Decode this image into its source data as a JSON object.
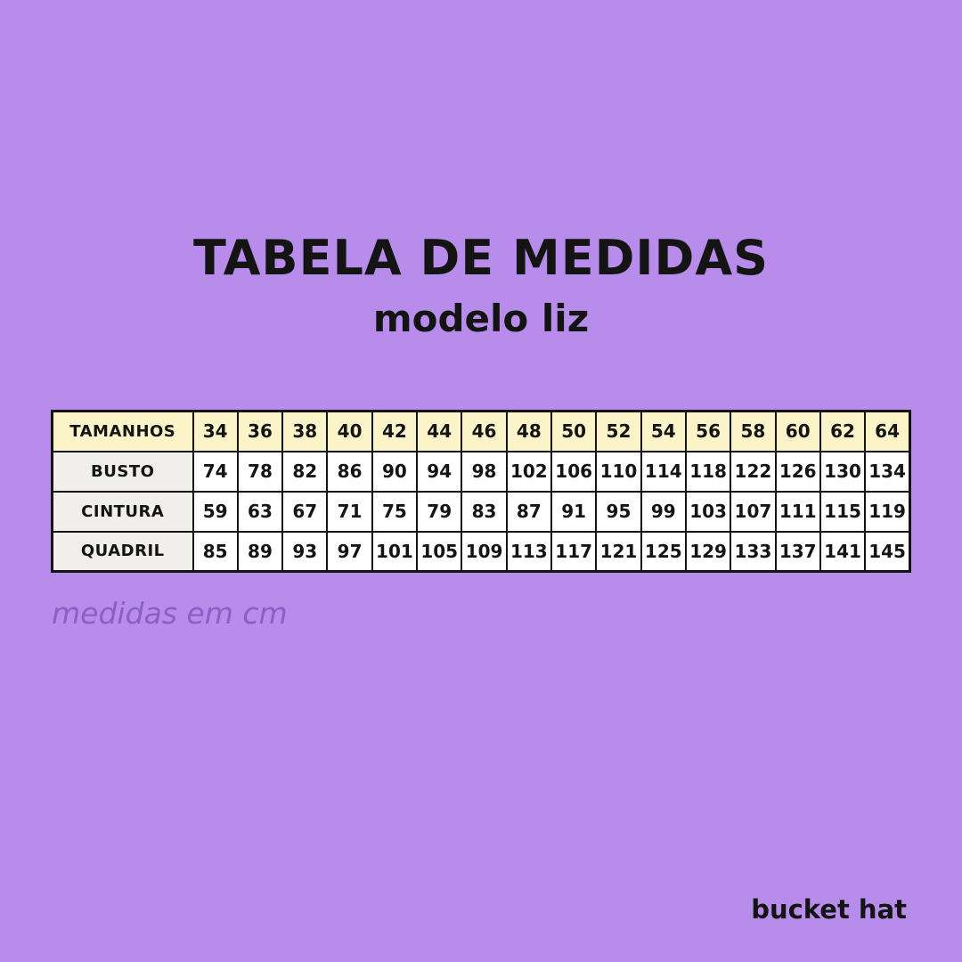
{
  "page": {
    "title": "TABELA DE MEDIDAS",
    "subtitle": "modelo liz",
    "caption": "medidas em cm",
    "brand": "bucket hat"
  },
  "colors": {
    "background": "#b78ceb",
    "header_fill": "#faf4c8",
    "label_fill": "#f0efeb",
    "cell_fill": "#ffffff",
    "line": "#141414",
    "text": "#141414",
    "caption_text": "#8a5fc6"
  },
  "chart_data": {
    "type": "table",
    "title": "TABELA DE MEDIDAS",
    "subtitle": "modelo liz",
    "units_note": "medidas em cm",
    "columns_header": "TAMANHOS",
    "sizes": [
      "34",
      "36",
      "38",
      "40",
      "42",
      "44",
      "46",
      "48",
      "50",
      "52",
      "54",
      "56",
      "58",
      "60",
      "62",
      "64"
    ],
    "rows": [
      {
        "label": "BUSTO",
        "values": [
          "74",
          "78",
          "82",
          "86",
          "90",
          "94",
          "98",
          "102",
          "106",
          "110",
          "114",
          "118",
          "122",
          "126",
          "130",
          "134"
        ]
      },
      {
        "label": "CINTURA",
        "values": [
          "59",
          "63",
          "67",
          "71",
          "75",
          "79",
          "83",
          "87",
          "91",
          "95",
          "99",
          "103",
          "107",
          "111",
          "115",
          "119"
        ]
      },
      {
        "label": "QUADRIL",
        "values": [
          "85",
          "89",
          "93",
          "97",
          "101",
          "105",
          "109",
          "113",
          "117",
          "121",
          "125",
          "129",
          "133",
          "137",
          "141",
          "145"
        ]
      }
    ]
  }
}
